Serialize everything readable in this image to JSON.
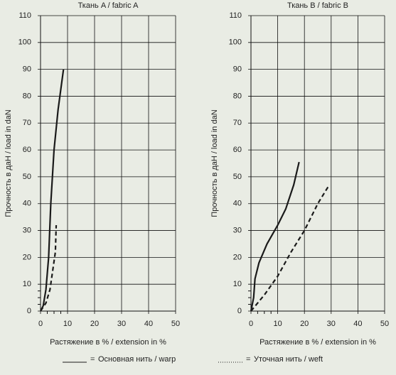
{
  "chart_data": [
    {
      "type": "line",
      "title": "Ткань A / fabric A",
      "y_label": "Прочность в даН / load in daN",
      "x_label": "Растяжение в % / extension in %",
      "xlim": [
        0,
        50
      ],
      "xticks": [
        0,
        10,
        20,
        30,
        40,
        50
      ],
      "minor_xticks": [
        2.5,
        5,
        7.5
      ],
      "ylim": [
        0,
        110
      ],
      "yticks": [
        0,
        10,
        20,
        30,
        40,
        50,
        60,
        70,
        80,
        90,
        100,
        110
      ],
      "minor_yticks": [
        2.5,
        5,
        7.5
      ],
      "grid": true,
      "legend_separator": "=",
      "series": [
        {
          "name": "Основная нить / warp",
          "color": "#1a1a1a",
          "line_style": "solid",
          "x": [
            0,
            1,
            2,
            3,
            3.8,
            5,
            6.5,
            8.5
          ],
          "values": [
            0,
            2,
            8,
            20,
            40,
            60,
            75,
            90
          ]
        },
        {
          "name": "Уточная нить / weft",
          "color": "#1a1a1a",
          "line_style": "dashed",
          "x": [
            0,
            2,
            3.5,
            4.5,
            5.5,
            5.8
          ],
          "values": [
            0,
            3,
            8,
            15,
            22,
            32
          ]
        }
      ]
    },
    {
      "type": "line",
      "title": "Ткань B / fabric B",
      "y_label": "Прочность в даН / load in daN",
      "x_label": "Растяжение в % / extension in %",
      "xlim": [
        0,
        50
      ],
      "xticks": [
        0,
        10,
        20,
        30,
        40,
        50
      ],
      "minor_xticks": [
        2.5,
        5,
        7.5
      ],
      "ylim": [
        0,
        110
      ],
      "yticks": [
        0,
        10,
        20,
        30,
        40,
        50,
        60,
        70,
        80,
        90,
        100,
        110
      ],
      "minor_yticks": [
        2.5,
        5,
        7.5
      ],
      "grid": true,
      "series": [
        {
          "name": "Основная нить / warp",
          "color": "#1a1a1a",
          "line_style": "solid",
          "x": [
            0,
            1,
            1.5,
            3,
            6,
            10,
            13,
            16,
            18
          ],
          "values": [
            0,
            5,
            12,
            18,
            25,
            32,
            38,
            47,
            55.5
          ]
        },
        {
          "name": "Уточная нить / weft",
          "color": "#1a1a1a",
          "line_style": "dashed",
          "x": [
            0,
            5,
            10,
            15,
            20,
            25,
            29
          ],
          "values": [
            0,
            6,
            13,
            22,
            30,
            40,
            46.5
          ]
        }
      ]
    }
  ]
}
